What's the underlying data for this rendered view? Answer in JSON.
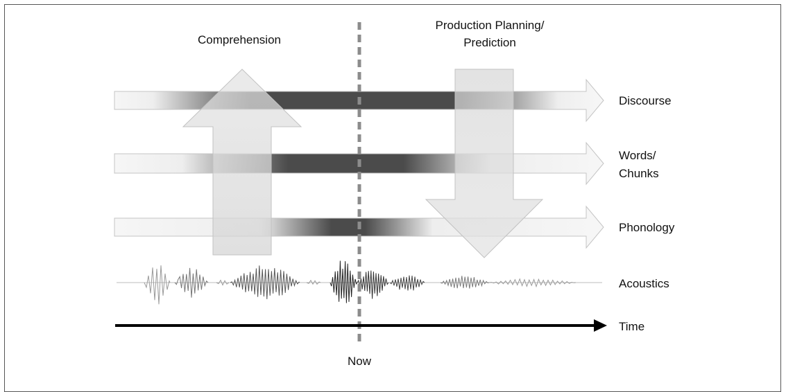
{
  "top_labels": {
    "comprehension": "Comprehension",
    "production_line1": "Production Planning/",
    "production_line2": "Prediction"
  },
  "levels": {
    "discourse": "Discourse",
    "words_line1": "Words/",
    "words_line2": "Chunks",
    "phonology": "Phonology",
    "acoustics": "Acoustics",
    "time": "Time"
  },
  "now_label": "Now",
  "colors": {
    "dark_band": "#4a4a4a",
    "light_band": "#f5f5f5",
    "vertical_arrow": "#dedede",
    "now_line": "#8c8c8c",
    "time_arrow": "#000000"
  }
}
